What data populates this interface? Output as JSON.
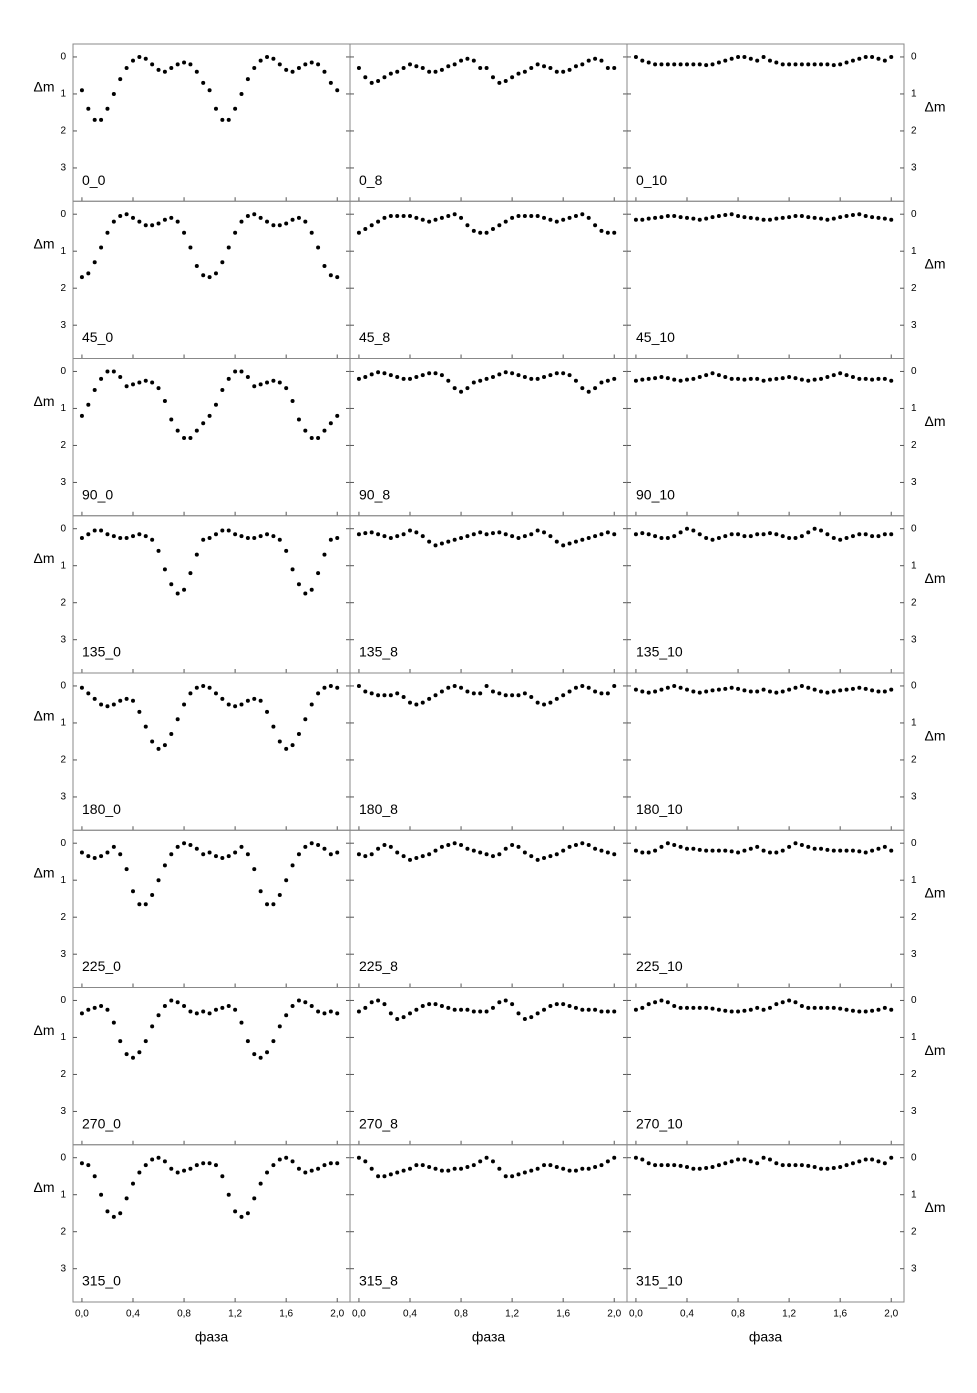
{
  "chart_data": {
    "type": "scatter",
    "xlabel": "фаза",
    "ylabel": "Δm",
    "xlim": [
      -0.07,
      2.1
    ],
    "xticks": [
      {
        "value": 0,
        "label": "0,0"
      },
      {
        "value": 0.4,
        "label": "0,4"
      },
      {
        "value": 0.8,
        "label": "0,8"
      },
      {
        "value": 1.2,
        "label": "1,2"
      },
      {
        "value": 1.6,
        "label": "1,6"
      },
      {
        "value": 2,
        "label": "2,0"
      }
    ],
    "ylim": [
      3.9,
      -0.35
    ],
    "yticks": [
      0,
      1,
      2,
      3
    ],
    "color": "#000000",
    "x": [
      0,
      0.05,
      0.1,
      0.15,
      0.2,
      0.25,
      0.3,
      0.35,
      0.4,
      0.45,
      0.5,
      0.55,
      0.6,
      0.65,
      0.7,
      0.75,
      0.8,
      0.85,
      0.9,
      0.95,
      1,
      1.05,
      1.1,
      1.15,
      1.2,
      1.25,
      1.3,
      1.35,
      1.4,
      1.45,
      1.5,
      1.55,
      1.6,
      1.65,
      1.7,
      1.75,
      1.8,
      1.85,
      1.9,
      1.95,
      2
    ],
    "panels": [
      {
        "label": "0_0",
        "values": [
          0.9,
          1.4,
          1.7,
          1.7,
          1.4,
          1.0,
          0.6,
          0.3,
          0.1,
          0.0,
          0.05,
          0.2,
          0.35,
          0.4,
          0.3,
          0.2,
          0.15,
          0.2,
          0.4,
          0.7,
          0.9,
          1.4,
          1.7,
          1.7,
          1.4,
          1.0,
          0.6,
          0.3,
          0.1,
          0.0,
          0.05,
          0.2,
          0.35,
          0.4,
          0.3,
          0.2,
          0.15,
          0.2,
          0.4,
          0.7,
          0.9
        ]
      },
      {
        "label": "0_8",
        "values": [
          0.3,
          0.55,
          0.7,
          0.65,
          0.55,
          0.45,
          0.4,
          0.3,
          0.2,
          0.25,
          0.3,
          0.4,
          0.4,
          0.35,
          0.25,
          0.2,
          0.1,
          0.05,
          0.1,
          0.3,
          0.3,
          0.55,
          0.7,
          0.65,
          0.55,
          0.45,
          0.4,
          0.3,
          0.2,
          0.25,
          0.3,
          0.4,
          0.4,
          0.35,
          0.25,
          0.2,
          0.1,
          0.05,
          0.1,
          0.3,
          0.3
        ]
      },
      {
        "label": "0_10",
        "values": [
          0.0,
          0.1,
          0.15,
          0.2,
          0.2,
          0.2,
          0.2,
          0.2,
          0.2,
          0.2,
          0.2,
          0.22,
          0.2,
          0.15,
          0.1,
          0.05,
          0.0,
          0.0,
          0.05,
          0.1,
          0.0,
          0.1,
          0.15,
          0.2,
          0.2,
          0.2,
          0.2,
          0.2,
          0.2,
          0.2,
          0.2,
          0.22,
          0.2,
          0.15,
          0.1,
          0.05,
          0.0,
          0.0,
          0.05,
          0.1,
          0.0
        ]
      },
      {
        "label": "45_0",
        "values": [
          1.7,
          1.6,
          1.3,
          0.9,
          0.5,
          0.2,
          0.05,
          0.0,
          0.1,
          0.2,
          0.3,
          0.3,
          0.25,
          0.15,
          0.1,
          0.2,
          0.5,
          0.9,
          1.4,
          1.65,
          1.7,
          1.6,
          1.3,
          0.9,
          0.5,
          0.2,
          0.05,
          0.0,
          0.1,
          0.2,
          0.3,
          0.3,
          0.25,
          0.15,
          0.1,
          0.2,
          0.5,
          0.9,
          1.4,
          1.65,
          1.7
        ]
      },
      {
        "label": "45_8",
        "values": [
          0.5,
          0.4,
          0.3,
          0.2,
          0.1,
          0.05,
          0.05,
          0.05,
          0.05,
          0.1,
          0.15,
          0.2,
          0.15,
          0.1,
          0.05,
          0.0,
          0.1,
          0.3,
          0.45,
          0.5,
          0.5,
          0.4,
          0.3,
          0.2,
          0.1,
          0.05,
          0.05,
          0.05,
          0.05,
          0.1,
          0.15,
          0.2,
          0.15,
          0.1,
          0.05,
          0.0,
          0.1,
          0.3,
          0.45,
          0.5,
          0.5
        ]
      },
      {
        "label": "45_10",
        "values": [
          0.15,
          0.15,
          0.12,
          0.1,
          0.08,
          0.05,
          0.05,
          0.08,
          0.1,
          0.12,
          0.15,
          0.12,
          0.08,
          0.05,
          0.02,
          0.0,
          0.05,
          0.08,
          0.1,
          0.12,
          0.15,
          0.15,
          0.12,
          0.1,
          0.08,
          0.05,
          0.05,
          0.08,
          0.1,
          0.12,
          0.15,
          0.12,
          0.08,
          0.05,
          0.02,
          0.0,
          0.05,
          0.08,
          0.1,
          0.12,
          0.15
        ]
      },
      {
        "label": "90_0",
        "values": [
          1.2,
          0.9,
          0.5,
          0.2,
          0.0,
          0.0,
          0.15,
          0.4,
          0.35,
          0.3,
          0.25,
          0.3,
          0.45,
          0.8,
          1.3,
          1.6,
          1.8,
          1.8,
          1.6,
          1.4,
          1.2,
          0.9,
          0.5,
          0.2,
          0.0,
          0.0,
          0.15,
          0.4,
          0.35,
          0.3,
          0.25,
          0.3,
          0.45,
          0.8,
          1.3,
          1.6,
          1.8,
          1.8,
          1.6,
          1.4,
          1.2
        ]
      },
      {
        "label": "90_8",
        "values": [
          0.2,
          0.15,
          0.08,
          0.02,
          0.05,
          0.1,
          0.15,
          0.2,
          0.2,
          0.15,
          0.1,
          0.05,
          0.05,
          0.1,
          0.25,
          0.45,
          0.55,
          0.45,
          0.3,
          0.25,
          0.2,
          0.15,
          0.08,
          0.02,
          0.05,
          0.1,
          0.15,
          0.2,
          0.2,
          0.15,
          0.1,
          0.05,
          0.05,
          0.1,
          0.25,
          0.45,
          0.55,
          0.45,
          0.3,
          0.25,
          0.2
        ]
      },
      {
        "label": "90_10",
        "values": [
          0.25,
          0.22,
          0.2,
          0.18,
          0.15,
          0.18,
          0.22,
          0.25,
          0.22,
          0.2,
          0.15,
          0.1,
          0.05,
          0.1,
          0.15,
          0.2,
          0.2,
          0.22,
          0.2,
          0.2,
          0.25,
          0.22,
          0.2,
          0.18,
          0.15,
          0.18,
          0.22,
          0.25,
          0.22,
          0.2,
          0.15,
          0.1,
          0.05,
          0.1,
          0.15,
          0.2,
          0.2,
          0.22,
          0.2,
          0.2,
          0.25
        ]
      },
      {
        "label": "135_0",
        "values": [
          0.25,
          0.15,
          0.05,
          0.05,
          0.15,
          0.2,
          0.25,
          0.25,
          0.2,
          0.15,
          0.2,
          0.3,
          0.6,
          1.1,
          1.5,
          1.75,
          1.65,
          1.2,
          0.7,
          0.3,
          0.25,
          0.15,
          0.05,
          0.05,
          0.15,
          0.2,
          0.25,
          0.25,
          0.2,
          0.15,
          0.2,
          0.3,
          0.6,
          1.1,
          1.5,
          1.75,
          1.65,
          1.2,
          0.7,
          0.3,
          0.25
        ]
      },
      {
        "label": "135_8",
        "values": [
          0.15,
          0.12,
          0.1,
          0.15,
          0.2,
          0.25,
          0.2,
          0.15,
          0.05,
          0.1,
          0.2,
          0.35,
          0.45,
          0.4,
          0.35,
          0.3,
          0.25,
          0.2,
          0.15,
          0.1,
          0.15,
          0.12,
          0.1,
          0.15,
          0.2,
          0.25,
          0.2,
          0.15,
          0.05,
          0.1,
          0.2,
          0.35,
          0.45,
          0.4,
          0.35,
          0.3,
          0.25,
          0.2,
          0.15,
          0.1,
          0.15
        ]
      },
      {
        "label": "135_10",
        "values": [
          0.15,
          0.12,
          0.15,
          0.2,
          0.25,
          0.25,
          0.2,
          0.1,
          0.0,
          0.05,
          0.15,
          0.25,
          0.3,
          0.25,
          0.2,
          0.15,
          0.15,
          0.2,
          0.2,
          0.15,
          0.15,
          0.12,
          0.15,
          0.2,
          0.25,
          0.25,
          0.2,
          0.1,
          0.0,
          0.05,
          0.15,
          0.25,
          0.3,
          0.25,
          0.2,
          0.15,
          0.15,
          0.2,
          0.2,
          0.15,
          0.15
        ]
      },
      {
        "label": "180_0",
        "values": [
          0.05,
          0.2,
          0.35,
          0.5,
          0.55,
          0.5,
          0.4,
          0.35,
          0.4,
          0.7,
          1.1,
          1.5,
          1.7,
          1.6,
          1.3,
          0.9,
          0.5,
          0.2,
          0.05,
          0.0,
          0.05,
          0.2,
          0.35,
          0.5,
          0.55,
          0.5,
          0.4,
          0.35,
          0.4,
          0.7,
          1.1,
          1.5,
          1.7,
          1.6,
          1.3,
          0.9,
          0.5,
          0.2,
          0.05,
          0.0,
          0.05
        ]
      },
      {
        "label": "180_8",
        "values": [
          0.0,
          0.15,
          0.2,
          0.25,
          0.25,
          0.25,
          0.2,
          0.3,
          0.45,
          0.5,
          0.45,
          0.35,
          0.25,
          0.15,
          0.05,
          0.0,
          0.05,
          0.15,
          0.2,
          0.2,
          0.0,
          0.15,
          0.2,
          0.25,
          0.25,
          0.25,
          0.2,
          0.3,
          0.45,
          0.5,
          0.45,
          0.35,
          0.25,
          0.15,
          0.05,
          0.0,
          0.05,
          0.15,
          0.2,
          0.2,
          0.0
        ]
      },
      {
        "label": "180_10",
        "values": [
          0.1,
          0.15,
          0.18,
          0.15,
          0.1,
          0.05,
          0.0,
          0.05,
          0.1,
          0.15,
          0.18,
          0.15,
          0.12,
          0.1,
          0.08,
          0.05,
          0.08,
          0.12,
          0.15,
          0.15,
          0.1,
          0.15,
          0.18,
          0.15,
          0.1,
          0.05,
          0.0,
          0.05,
          0.1,
          0.15,
          0.18,
          0.15,
          0.12,
          0.1,
          0.08,
          0.05,
          0.08,
          0.12,
          0.15,
          0.15,
          0.1
        ]
      },
      {
        "label": "225_0",
        "values": [
          0.25,
          0.35,
          0.4,
          0.35,
          0.25,
          0.1,
          0.3,
          0.7,
          1.3,
          1.65,
          1.65,
          1.4,
          1.0,
          0.6,
          0.3,
          0.1,
          0.0,
          0.05,
          0.15,
          0.3,
          0.25,
          0.35,
          0.4,
          0.35,
          0.25,
          0.1,
          0.3,
          0.7,
          1.3,
          1.65,
          1.65,
          1.4,
          1.0,
          0.6,
          0.3,
          0.1,
          0.0,
          0.05,
          0.15,
          0.3,
          0.25
        ]
      },
      {
        "label": "225_8",
        "values": [
          0.3,
          0.35,
          0.3,
          0.15,
          0.05,
          0.1,
          0.25,
          0.35,
          0.45,
          0.4,
          0.35,
          0.3,
          0.2,
          0.1,
          0.05,
          0.0,
          0.05,
          0.15,
          0.2,
          0.25,
          0.3,
          0.35,
          0.3,
          0.15,
          0.05,
          0.1,
          0.25,
          0.35,
          0.45,
          0.4,
          0.35,
          0.3,
          0.2,
          0.1,
          0.05,
          0.0,
          0.05,
          0.15,
          0.2,
          0.25,
          0.3
        ]
      },
      {
        "label": "225_10",
        "values": [
          0.2,
          0.25,
          0.25,
          0.2,
          0.1,
          0.0,
          0.05,
          0.1,
          0.15,
          0.15,
          0.18,
          0.2,
          0.2,
          0.2,
          0.2,
          0.22,
          0.25,
          0.2,
          0.15,
          0.1,
          0.2,
          0.25,
          0.25,
          0.2,
          0.1,
          0.0,
          0.05,
          0.1,
          0.15,
          0.15,
          0.18,
          0.2,
          0.2,
          0.2,
          0.2,
          0.22,
          0.25,
          0.2,
          0.15,
          0.1,
          0.2
        ]
      },
      {
        "label": "270_0",
        "values": [
          0.35,
          0.25,
          0.2,
          0.15,
          0.25,
          0.6,
          1.1,
          1.45,
          1.55,
          1.4,
          1.1,
          0.7,
          0.4,
          0.15,
          0.0,
          0.05,
          0.15,
          0.3,
          0.35,
          0.3,
          0.35,
          0.25,
          0.2,
          0.15,
          0.25,
          0.6,
          1.1,
          1.45,
          1.55,
          1.4,
          1.1,
          0.7,
          0.4,
          0.15,
          0.0,
          0.05,
          0.15,
          0.3,
          0.35,
          0.3,
          0.35
        ]
      },
      {
        "label": "270_8",
        "values": [
          0.3,
          0.2,
          0.05,
          0.0,
          0.1,
          0.35,
          0.5,
          0.45,
          0.35,
          0.25,
          0.15,
          0.1,
          0.1,
          0.15,
          0.2,
          0.25,
          0.25,
          0.25,
          0.3,
          0.3,
          0.3,
          0.2,
          0.05,
          0.0,
          0.1,
          0.35,
          0.5,
          0.45,
          0.35,
          0.25,
          0.15,
          0.1,
          0.1,
          0.15,
          0.2,
          0.25,
          0.25,
          0.25,
          0.3,
          0.3,
          0.3
        ]
      },
      {
        "label": "270_10",
        "values": [
          0.25,
          0.2,
          0.1,
          0.05,
          0.0,
          0.05,
          0.15,
          0.2,
          0.2,
          0.2,
          0.2,
          0.2,
          0.22,
          0.25,
          0.28,
          0.3,
          0.3,
          0.28,
          0.25,
          0.2,
          0.25,
          0.2,
          0.1,
          0.05,
          0.0,
          0.05,
          0.15,
          0.2,
          0.2,
          0.2,
          0.2,
          0.2,
          0.22,
          0.25,
          0.28,
          0.3,
          0.3,
          0.28,
          0.25,
          0.2,
          0.25
        ]
      },
      {
        "label": "315_0",
        "values": [
          0.15,
          0.2,
          0.5,
          1.0,
          1.45,
          1.6,
          1.5,
          1.1,
          0.7,
          0.4,
          0.2,
          0.05,
          0.0,
          0.1,
          0.3,
          0.4,
          0.35,
          0.3,
          0.2,
          0.15,
          0.15,
          0.2,
          0.5,
          1.0,
          1.45,
          1.6,
          1.5,
          1.1,
          0.7,
          0.4,
          0.2,
          0.05,
          0.0,
          0.1,
          0.3,
          0.4,
          0.35,
          0.3,
          0.2,
          0.15,
          0.15
        ]
      },
      {
        "label": "315_8",
        "values": [
          0.0,
          0.1,
          0.3,
          0.5,
          0.5,
          0.45,
          0.4,
          0.35,
          0.3,
          0.2,
          0.2,
          0.25,
          0.3,
          0.35,
          0.35,
          0.3,
          0.3,
          0.25,
          0.2,
          0.1,
          0.0,
          0.1,
          0.3,
          0.5,
          0.5,
          0.45,
          0.4,
          0.35,
          0.3,
          0.2,
          0.2,
          0.25,
          0.3,
          0.35,
          0.35,
          0.3,
          0.3,
          0.25,
          0.2,
          0.1,
          0.0
        ]
      },
      {
        "label": "315_10",
        "values": [
          0.0,
          0.05,
          0.15,
          0.2,
          0.2,
          0.2,
          0.2,
          0.22,
          0.25,
          0.3,
          0.3,
          0.28,
          0.25,
          0.2,
          0.15,
          0.1,
          0.05,
          0.05,
          0.1,
          0.15,
          0.0,
          0.05,
          0.15,
          0.2,
          0.2,
          0.2,
          0.2,
          0.22,
          0.25,
          0.3,
          0.3,
          0.28,
          0.25,
          0.2,
          0.15,
          0.1,
          0.05,
          0.05,
          0.1,
          0.15,
          0.0
        ]
      }
    ]
  }
}
